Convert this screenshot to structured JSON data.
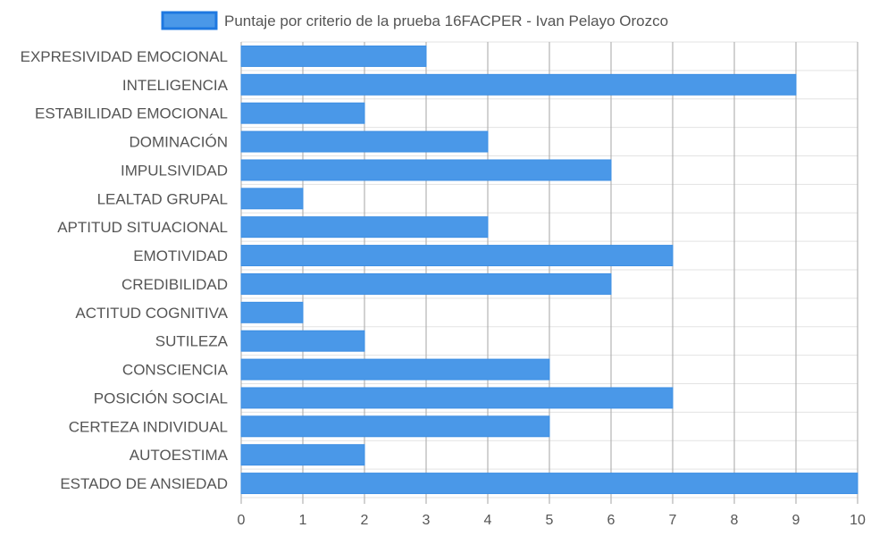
{
  "chart_data": {
    "type": "bar",
    "orientation": "horizontal",
    "categories": [
      "EXPRESIVIDAD EMOCIONAL",
      "INTELIGENCIA",
      "ESTABILIDAD EMOCIONAL",
      "DOMINACIÓN",
      "IMPULSIVIDAD",
      "LEALTAD GRUPAL",
      "APTITUD SITUACIONAL",
      "EMOTIVIDAD",
      "CREDIBILIDAD",
      "ACTITUD COGNITIVA",
      "SUTILEZA",
      "CONSCIENCIA",
      "POSICIÓN SOCIAL",
      "CERTEZA INDIVIDUAL",
      "AUTOESTIMA",
      "ESTADO DE ANSIEDAD"
    ],
    "series": [
      {
        "name": "Puntaje por criterio de la prueba 16FACPER - Ivan Pelayo Orozco",
        "values": [
          3,
          9,
          2,
          4,
          6,
          1,
          4,
          7,
          6,
          1,
          2,
          5,
          7,
          5,
          2,
          10
        ],
        "color": "#4a98e8"
      }
    ],
    "xlim": [
      0,
      10
    ],
    "xticks": [
      "0",
      "1",
      "2",
      "3",
      "4",
      "5",
      "6",
      "7",
      "8",
      "9",
      "10"
    ],
    "grid": true,
    "legend_position": "top",
    "colors": {
      "bar_fill": "#4a98e8",
      "bar_stroke": "#3d8fe3",
      "legend_stroke": "#1e78e0",
      "grid_vertical": "#a6a6a6",
      "grid_horizontal": "#e3e3e3",
      "text": "#555555"
    }
  }
}
